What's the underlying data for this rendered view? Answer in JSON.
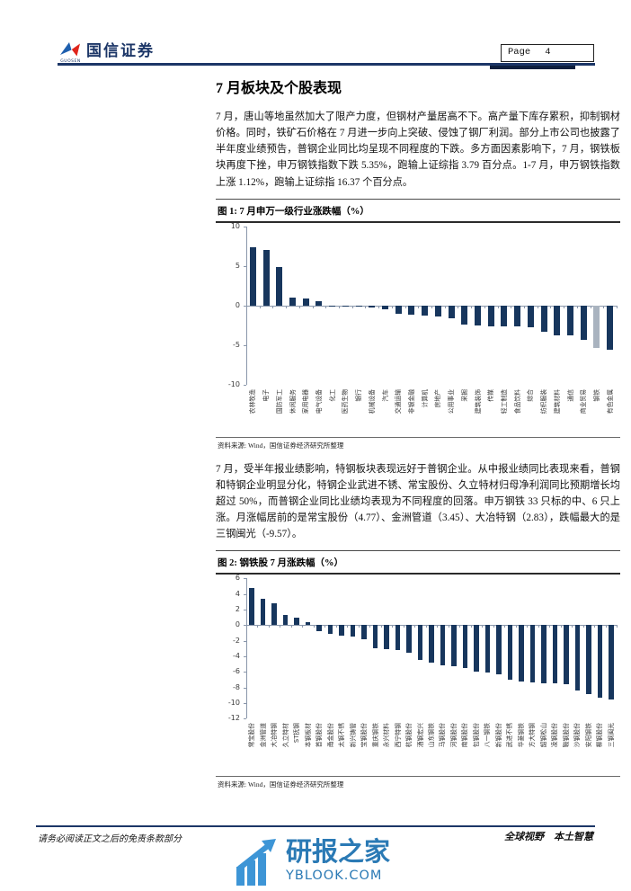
{
  "header": {
    "brand_name": "国信证券",
    "brand_sub": "GUOSEN",
    "page_label": "Page",
    "page_number": "4"
  },
  "title": "7 月板块及个股表现",
  "paragraphs": {
    "p1": "7 月，唐山等地虽然加大了限产力度，但钢材产量居高不下。高产量下库存累积，抑制钢材价格。同时，铁矿石价格在 7 月进一步向上突破、侵蚀了钢厂利润。部分上市公司也披露了半年度业绩预告，普钢企业同比均呈现不同程度的下跌。多方面因素影响下，7 月，钢铁板块再度下挫，申万钢铁指数下跌 5.35%，跑输上证综指 3.79 百分点。1-7 月，申万钢铁指数上涨 1.12%，跑输上证综指 16.37 个百分点。",
    "p2": "7 月，受半年报业绩影响，特钢板块表现远好于普钢企业。从中报业绩同比表现来看，普钢和特钢企业明显分化，特钢企业武进不锈、常宝股份、久立特材归母净利润同比预期增长均超过 50%，而普钢企业同比业绩均表现为不同程度的回落。申万钢铁 33 只标的中、6 只上涨。月涨幅居前的是常宝股份（4.77）、金洲管道（3.45）、大冶特钢（2.83），跌幅最大的是三钢闽光（-9.57）。"
  },
  "figure1": {
    "title": "图 1: 7 月申万一级行业涨跌幅（%）",
    "source": "资料来源: Wind，国信证券经济研究所整理"
  },
  "figure2": {
    "title": "图 2: 钢铁股 7 月涨跌幅（%）",
    "source": "资料来源: Wind，国信证券经济研究所整理"
  },
  "footer": {
    "disclaimer": "请务必阅读正文之后的免责条款部分",
    "slogan": "全球视野　本土智慧"
  },
  "watermark": {
    "name": "研报之家",
    "site": "YBLOOK.COM"
  },
  "colors": {
    "brand_navy": "#1c3667",
    "bar_navy": "#17365d",
    "highlight_gray": "#a9b3bf",
    "axis_gray": "#8a97ab",
    "watermark_blue": "#2b7ab5",
    "logo_blue": "#1e5fae",
    "logo_red": "#e0251b"
  },
  "chart_data": [
    {
      "type": "bar",
      "title": "7月申万一级行业涨跌幅（%）",
      "xlabel": "",
      "ylabel": "",
      "ylim": [
        -10,
        10
      ],
      "ytick_step": 5,
      "grid": false,
      "legend": "none",
      "bar_color": "#17365d",
      "highlight_index": 26,
      "highlight_color": "#a9b3bf",
      "categories": [
        "农林牧渔",
        "电子",
        "国防军工",
        "休闲服务",
        "家用电器",
        "电气设备",
        "化工",
        "医药生物",
        "银行",
        "机械设备",
        "汽车",
        "交通运输",
        "非银金融",
        "计算机",
        "房地产",
        "公用事业",
        "采掘",
        "建筑装饰",
        "传媒",
        "轻工制造",
        "食品饮料",
        "综合",
        "纺织服装",
        "建筑材料",
        "通信",
        "商业贸易",
        "钢铁",
        "有色金属"
      ],
      "values": [
        7.3,
        7.0,
        4.9,
        1.0,
        0.85,
        0.55,
        -0.05,
        -0.12,
        -0.2,
        -0.3,
        -0.5,
        -1.05,
        -1.2,
        -1.3,
        -1.45,
        -1.6,
        -2.4,
        -2.55,
        -2.6,
        -2.65,
        -2.7,
        -2.75,
        -3.3,
        -3.75,
        -3.8,
        -4.3,
        -5.35,
        -5.6
      ]
    },
    {
      "type": "bar",
      "title": "钢铁股7月涨跌幅（%）",
      "xlabel": "",
      "ylabel": "",
      "ylim": [
        -12,
        6
      ],
      "ytick_step": 2,
      "grid": false,
      "legend": "none",
      "bar_color": "#17365d",
      "highlight_index": -1,
      "highlight_color": "#a9b3bf",
      "categories": [
        "常宝股份",
        "金洲管道",
        "大冶特钢",
        "久立特材",
        "ST抚钢",
        "本钢板材",
        "首钢股份",
        "甬金股份",
        "太钢不锈",
        "新兴铸管",
        "宝钢股份",
        "重庆钢铁",
        "永兴材料",
        "西宁特钢",
        "杭钢股份",
        "酒钢宏兴",
        "山东钢铁",
        "马钢股份",
        "河钢股份",
        "南钢股份",
        "包钢股份",
        "八一钢铁",
        "新钢股份",
        "武进不锈",
        "华菱钢铁",
        "方大特钢",
        "韶钢松山",
        "凌钢股份",
        "鞍钢股份",
        "沙钢股份",
        "安阳钢铁",
        "柳钢股份",
        "三钢闽光"
      ],
      "values": [
        4.77,
        3.45,
        2.83,
        1.35,
        0.95,
        0.4,
        -0.75,
        -1.15,
        -1.3,
        -1.45,
        -1.85,
        -2.95,
        -3.05,
        -3.2,
        -3.5,
        -4.45,
        -4.75,
        -5.1,
        -5.25,
        -5.45,
        -5.95,
        -6.05,
        -6.25,
        -6.95,
        -7.2,
        -7.3,
        -7.4,
        -7.45,
        -7.6,
        -8.4,
        -8.85,
        -9.3,
        -9.57
      ]
    }
  ]
}
